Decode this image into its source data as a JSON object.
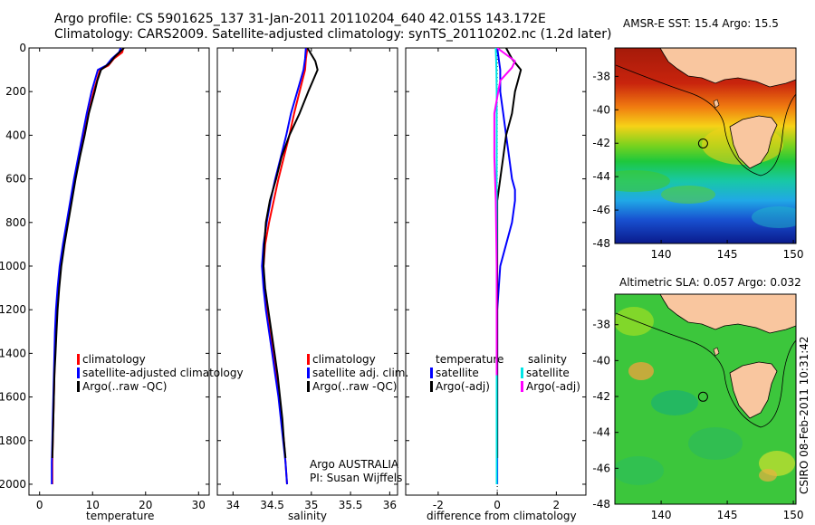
{
  "header": {
    "line1": "Argo profile: CS 5901625_137 31-Jan-2011 20110204_640 42.015S 143.172E",
    "line2": "Climatology: CARS2009. Satellite-adjusted climatology: synTS_20110202.nc (1.2d later)"
  },
  "colors": {
    "climatology": "#ff0000",
    "satellite": "#0000ff",
    "argo": "#000000",
    "sal_sat": "#00e5e5",
    "sal_argo": "#ff00ff",
    "land": "#f9c69f"
  },
  "chart_data": [
    {
      "type": "line",
      "id": "temperature",
      "xlabel": "temperature",
      "ylabel": "",
      "xlim": [
        -2,
        32
      ],
      "ylim": [
        0,
        2050
      ],
      "y_reversed": true,
      "xticks": [
        "0",
        "10",
        "20",
        "30"
      ],
      "xtick_values": [
        0,
        10,
        20,
        30
      ],
      "yticks": [
        "0",
        "200",
        "400",
        "600",
        "800",
        "1000",
        "1200",
        "1400",
        "1600",
        "1800",
        "2000"
      ],
      "ytick_values": [
        0,
        200,
        400,
        600,
        800,
        1000,
        1200,
        1400,
        1600,
        1800,
        2000
      ],
      "legend": [
        "climatology",
        "satellite-adjusted climatology",
        "Argo(..raw -QC)"
      ],
      "series": [
        {
          "name": "climatology",
          "color": "#ff0000",
          "points": [
            [
              15.8,
              0
            ],
            [
              15.6,
              20
            ],
            [
              14.0,
              50
            ],
            [
              13.0,
              80
            ],
            [
              11.4,
              100
            ],
            [
              10.8,
              150
            ],
            [
              10.2,
              200
            ],
            [
              9.2,
              300
            ],
            [
              8.4,
              400
            ],
            [
              7.5,
              500
            ],
            [
              6.7,
              600
            ],
            [
              6.0,
              700
            ],
            [
              5.3,
              800
            ],
            [
              4.6,
              900
            ],
            [
              4.0,
              1000
            ],
            [
              3.6,
              1100
            ],
            [
              3.3,
              1200
            ],
            [
              3.1,
              1300
            ],
            [
              2.9,
              1400
            ],
            [
              2.8,
              1500
            ],
            [
              2.7,
              1600
            ],
            [
              2.6,
              1700
            ],
            [
              2.5,
              1800
            ],
            [
              2.4,
              1900
            ],
            [
              2.4,
              2000
            ]
          ]
        },
        {
          "name": "satellite-adjusted climatology",
          "color": "#0000ff",
          "points": [
            [
              15.3,
              0
            ],
            [
              15.0,
              20
            ],
            [
              13.6,
              50
            ],
            [
              12.6,
              80
            ],
            [
              11.0,
              100
            ],
            [
              10.4,
              150
            ],
            [
              9.8,
              200
            ],
            [
              8.9,
              300
            ],
            [
              8.1,
              400
            ],
            [
              7.3,
              500
            ],
            [
              6.5,
              600
            ],
            [
              5.8,
              700
            ],
            [
              5.1,
              800
            ],
            [
              4.4,
              900
            ],
            [
              3.8,
              1000
            ],
            [
              3.4,
              1100
            ],
            [
              3.1,
              1200
            ],
            [
              2.9,
              1300
            ],
            [
              2.8,
              1400
            ],
            [
              2.7,
              1500
            ],
            [
              2.6,
              1600
            ],
            [
              2.5,
              1700
            ],
            [
              2.4,
              1800
            ],
            [
              2.3,
              1900
            ],
            [
              2.3,
              2000
            ]
          ]
        },
        {
          "name": "Argo(..raw -QC)",
          "color": "#000000",
          "points": [
            [
              15.9,
              0
            ],
            [
              15.5,
              10
            ],
            [
              14.2,
              40
            ],
            [
              13.2,
              70
            ],
            [
              11.6,
              100
            ],
            [
              10.9,
              150
            ],
            [
              10.4,
              200
            ],
            [
              9.3,
              300
            ],
            [
              8.5,
              400
            ],
            [
              7.6,
              500
            ],
            [
              6.8,
              600
            ],
            [
              6.1,
              700
            ],
            [
              5.4,
              800
            ],
            [
              4.7,
              900
            ],
            [
              4.1,
              1000
            ],
            [
              3.7,
              1100
            ],
            [
              3.4,
              1200
            ],
            [
              3.2,
              1300
            ],
            [
              3.0,
              1400
            ],
            [
              2.8,
              1500
            ],
            [
              2.7,
              1600
            ],
            [
              2.6,
              1700
            ],
            [
              2.5,
              1800
            ],
            [
              2.4,
              1880
            ]
          ]
        }
      ]
    },
    {
      "type": "line",
      "id": "salinity",
      "xlabel": "salinity",
      "xlim": [
        33.8,
        36.1
      ],
      "ylim": [
        0,
        2050
      ],
      "y_reversed": true,
      "xticks": [
        "34",
        "34.5",
        "35",
        "35.5",
        "36"
      ],
      "xtick_values": [
        34,
        34.5,
        35,
        35.5,
        36
      ],
      "legend": [
        "climatology",
        "satellite adj. clim.",
        "Argo(..raw -QC)"
      ],
      "annotation": [
        "Argo AUSTRALIA",
        "PI: Susan Wijffels"
      ],
      "series": [
        {
          "name": "climatology",
          "color": "#ff0000",
          "points": [
            [
              34.95,
              0
            ],
            [
              34.93,
              50
            ],
            [
              34.92,
              100
            ],
            [
              34.85,
              200
            ],
            [
              34.78,
              300
            ],
            [
              34.72,
              400
            ],
            [
              34.65,
              500
            ],
            [
              34.58,
              600
            ],
            [
              34.52,
              700
            ],
            [
              34.46,
              800
            ],
            [
              34.41,
              900
            ],
            [
              34.39,
              1000
            ],
            [
              34.4,
              1100
            ],
            [
              34.43,
              1200
            ],
            [
              34.47,
              1300
            ],
            [
              34.51,
              1400
            ],
            [
              34.55,
              1500
            ],
            [
              34.59,
              1600
            ],
            [
              34.62,
              1700
            ],
            [
              34.65,
              1800
            ],
            [
              34.67,
              1900
            ],
            [
              34.69,
              2000
            ]
          ]
        },
        {
          "name": "satellite adj. clim.",
          "color": "#0000ff",
          "points": [
            [
              34.93,
              0
            ],
            [
              34.92,
              50
            ],
            [
              34.9,
              100
            ],
            [
              34.82,
              200
            ],
            [
              34.74,
              300
            ],
            [
              34.68,
              400
            ],
            [
              34.61,
              500
            ],
            [
              34.54,
              600
            ],
            [
              34.48,
              700
            ],
            [
              34.43,
              800
            ],
            [
              34.39,
              900
            ],
            [
              34.37,
              1000
            ],
            [
              34.39,
              1100
            ],
            [
              34.42,
              1200
            ],
            [
              34.46,
              1300
            ],
            [
              34.5,
              1400
            ],
            [
              34.54,
              1500
            ],
            [
              34.58,
              1600
            ],
            [
              34.61,
              1700
            ],
            [
              34.64,
              1800
            ],
            [
              34.67,
              1900
            ],
            [
              34.69,
              2000
            ]
          ]
        },
        {
          "name": "Argo(..raw -QC)",
          "color": "#000000",
          "points": [
            [
              34.95,
              0
            ],
            [
              35.05,
              60
            ],
            [
              35.08,
              100
            ],
            [
              35.02,
              150
            ],
            [
              34.96,
              200
            ],
            [
              34.85,
              300
            ],
            [
              34.72,
              400
            ],
            [
              34.62,
              500
            ],
            [
              34.55,
              600
            ],
            [
              34.47,
              700
            ],
            [
              34.42,
              800
            ],
            [
              34.4,
              900
            ],
            [
              34.39,
              1000
            ],
            [
              34.41,
              1100
            ],
            [
              34.45,
              1200
            ],
            [
              34.49,
              1300
            ],
            [
              34.53,
              1400
            ],
            [
              34.57,
              1500
            ],
            [
              34.6,
              1600
            ],
            [
              34.63,
              1700
            ],
            [
              34.65,
              1800
            ],
            [
              34.67,
              1880
            ]
          ]
        }
      ]
    },
    {
      "type": "line",
      "id": "difference",
      "xlabel": "difference from climatology",
      "xlim": [
        -3.1,
        3.0
      ],
      "ylim": [
        0,
        2050
      ],
      "y_reversed": true,
      "xticks": [
        "-2",
        "0",
        "2"
      ],
      "xtick_values": [
        -2,
        0,
        2
      ],
      "legend_left_title": "temperature",
      "legend_right_title": "salinity",
      "legend": [
        "satellite",
        "Argo(-adj)",
        "satellite",
        "Argo(-adj)"
      ],
      "series": [
        {
          "name": "temperature satellite",
          "color": "#0000ff",
          "points": [
            [
              0.0,
              0
            ],
            [
              0.1,
              100
            ],
            [
              0.1,
              200
            ],
            [
              0.2,
              300
            ],
            [
              0.3,
              400
            ],
            [
              0.4,
              500
            ],
            [
              0.5,
              600
            ],
            [
              0.6,
              650
            ],
            [
              0.6,
              700
            ],
            [
              0.5,
              800
            ],
            [
              0.3,
              900
            ],
            [
              0.1,
              1000
            ],
            [
              0.0,
              1200
            ],
            [
              0.0,
              1500
            ],
            [
              0.0,
              2000
            ]
          ]
        },
        {
          "name": "temperature Argo(-adj)",
          "color": "#000000",
          "points": [
            [
              0.3,
              0
            ],
            [
              0.5,
              50
            ],
            [
              0.8,
              100
            ],
            [
              0.7,
              150
            ],
            [
              0.6,
              200
            ],
            [
              0.5,
              300
            ],
            [
              0.3,
              400
            ],
            [
              0.2,
              500
            ],
            [
              0.1,
              600
            ],
            [
              0.0,
              700
            ],
            [
              0.0,
              800
            ],
            [
              0.0,
              1000
            ],
            [
              0.0,
              1880
            ]
          ]
        },
        {
          "name": "salinity satellite",
          "color": "#00e5e5",
          "points": [
            [
              -0.05,
              0
            ],
            [
              -0.03,
              100
            ],
            [
              -0.02,
              200
            ],
            [
              -0.02,
              300
            ],
            [
              -0.02,
              500
            ],
            [
              -0.02,
              1000
            ],
            [
              -0.02,
              1500
            ],
            [
              -0.02,
              2000
            ]
          ]
        },
        {
          "name": "salinity Argo(-adj)",
          "color": "#ff00ff",
          "points": [
            [
              0.0,
              0
            ],
            [
              0.6,
              60
            ],
            [
              0.5,
              90
            ],
            [
              0.1,
              150
            ],
            [
              -0.1,
              300
            ],
            [
              -0.1,
              500
            ],
            [
              -0.05,
              700
            ],
            [
              -0.02,
              1000
            ],
            [
              -0.02,
              1500
            ]
          ]
        }
      ]
    },
    {
      "type": "heatmap",
      "id": "sst_map",
      "title": "AMSR-E SST: 15.4 Argo: 15.5",
      "xlim": [
        136.5,
        150.2
      ],
      "ylim": [
        -48,
        -36.3
      ],
      "xticks": [
        "140",
        "145",
        "150"
      ],
      "xtick_values": [
        140,
        145,
        150
      ],
      "yticks": [
        "-38",
        "-40",
        "-42",
        "-44",
        "-46",
        "-48"
      ],
      "ytick_values": [
        -38,
        -40,
        -42,
        -44,
        -46,
        -48
      ],
      "marker": {
        "lon": 143.172,
        "lat": -42.015
      }
    },
    {
      "type": "heatmap",
      "id": "sla_map",
      "title": "Altimetric SLA: 0.057 Argo: 0.032",
      "xlim": [
        136.5,
        150.2
      ],
      "ylim": [
        -48,
        -36.3
      ],
      "xticks": [
        "140",
        "145",
        "150"
      ],
      "xtick_values": [
        140,
        145,
        150
      ],
      "yticks": [
        "-38",
        "-40",
        "-42",
        "-44",
        "-46",
        "-48"
      ],
      "ytick_values": [
        -38,
        -40,
        -42,
        -44,
        -46,
        -48
      ],
      "marker": {
        "lon": 143.172,
        "lat": -42.015
      }
    }
  ],
  "stamp": "CSIRO 08-Feb-2011 10:31:42"
}
